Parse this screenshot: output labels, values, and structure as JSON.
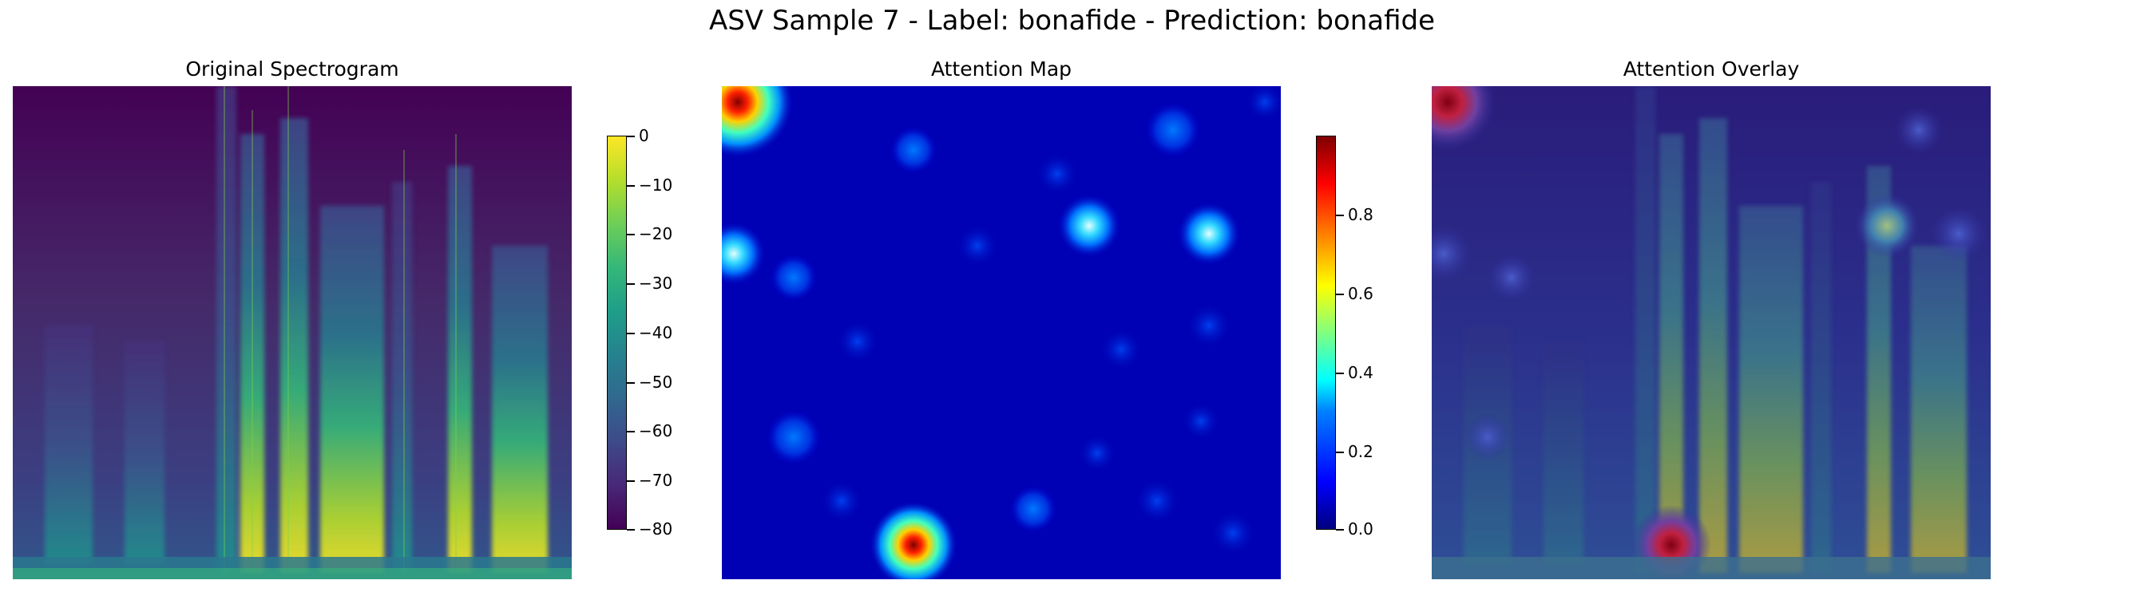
{
  "figure": {
    "title": "ASV Sample 7 - Label: bonafide - Prediction: bonafide"
  },
  "panels": {
    "spectrogram": {
      "title": "Original Spectrogram"
    },
    "attention": {
      "title": "Attention Map"
    },
    "overlay": {
      "title": "Attention Overlay"
    }
  },
  "colorbars": {
    "spectrogram": {
      "colormap": "viridis",
      "range": [
        -80,
        0
      ],
      "ticks": [
        "0",
        "−10",
        "−20",
        "−30",
        "−40",
        "−50",
        "−60",
        "−70",
        "−80"
      ]
    },
    "attention": {
      "colormap": "jet",
      "range": [
        0.0,
        1.0
      ],
      "ticks": [
        "0.8",
        "0.6",
        "0.4",
        "0.2",
        "0.0"
      ]
    }
  },
  "chart_data": [
    {
      "type": "heatmap",
      "title": "Original Spectrogram",
      "colormap": "viridis",
      "value_range": [
        -80,
        0
      ],
      "colorbar_ticks": [
        0,
        -10,
        -20,
        -30,
        -40,
        -50,
        -60,
        -70,
        -80
      ],
      "axes": "off"
    },
    {
      "type": "heatmap",
      "title": "Attention Map",
      "colormap": "jet",
      "value_range": [
        0.0,
        1.0
      ],
      "colorbar_ticks": [
        0.0,
        0.2,
        0.4,
        0.6,
        0.8
      ],
      "axes": "off"
    },
    {
      "type": "heatmap",
      "title": "Attention Overlay",
      "colormap": "jet over viridis",
      "axes": "off"
    }
  ]
}
